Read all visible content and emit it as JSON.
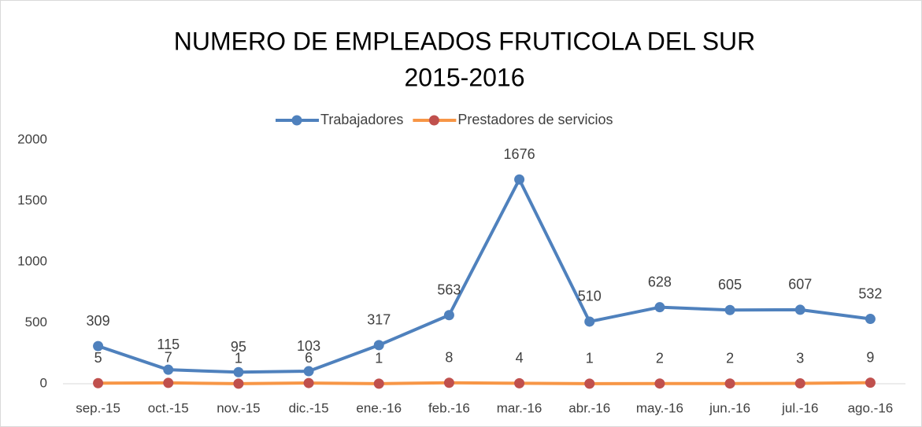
{
  "chart_data": {
    "type": "line",
    "title": "NUMERO DE EMPLEADOS FRUTICOLA DEL SUR",
    "subtitle": "2015-2016",
    "categories": [
      "sep.-15",
      "oct.-15",
      "nov.-15",
      "dic.-15",
      "ene.-16",
      "feb.-16",
      "mar.-16",
      "abr.-16",
      "may.-16",
      "jun.-16",
      "jul.-16",
      "ago.-16"
    ],
    "series": [
      {
        "name": "Trabajadores",
        "color": "#4f81bd",
        "marker_color": "#4f81bd",
        "values": [
          309,
          115,
          95,
          103,
          317,
          563,
          1676,
          510,
          628,
          605,
          607,
          532
        ]
      },
      {
        "name": "Prestadores de servicios",
        "color": "#f79646",
        "marker_color": "#c0504d",
        "values": [
          5,
          7,
          1,
          6,
          1,
          8,
          4,
          1,
          2,
          2,
          3,
          9
        ]
      }
    ],
    "ylim": [
      0,
      2000
    ],
    "yticks": [
      0,
      500,
      1000,
      1500,
      2000
    ],
    "grid": false,
    "legend": "top"
  }
}
